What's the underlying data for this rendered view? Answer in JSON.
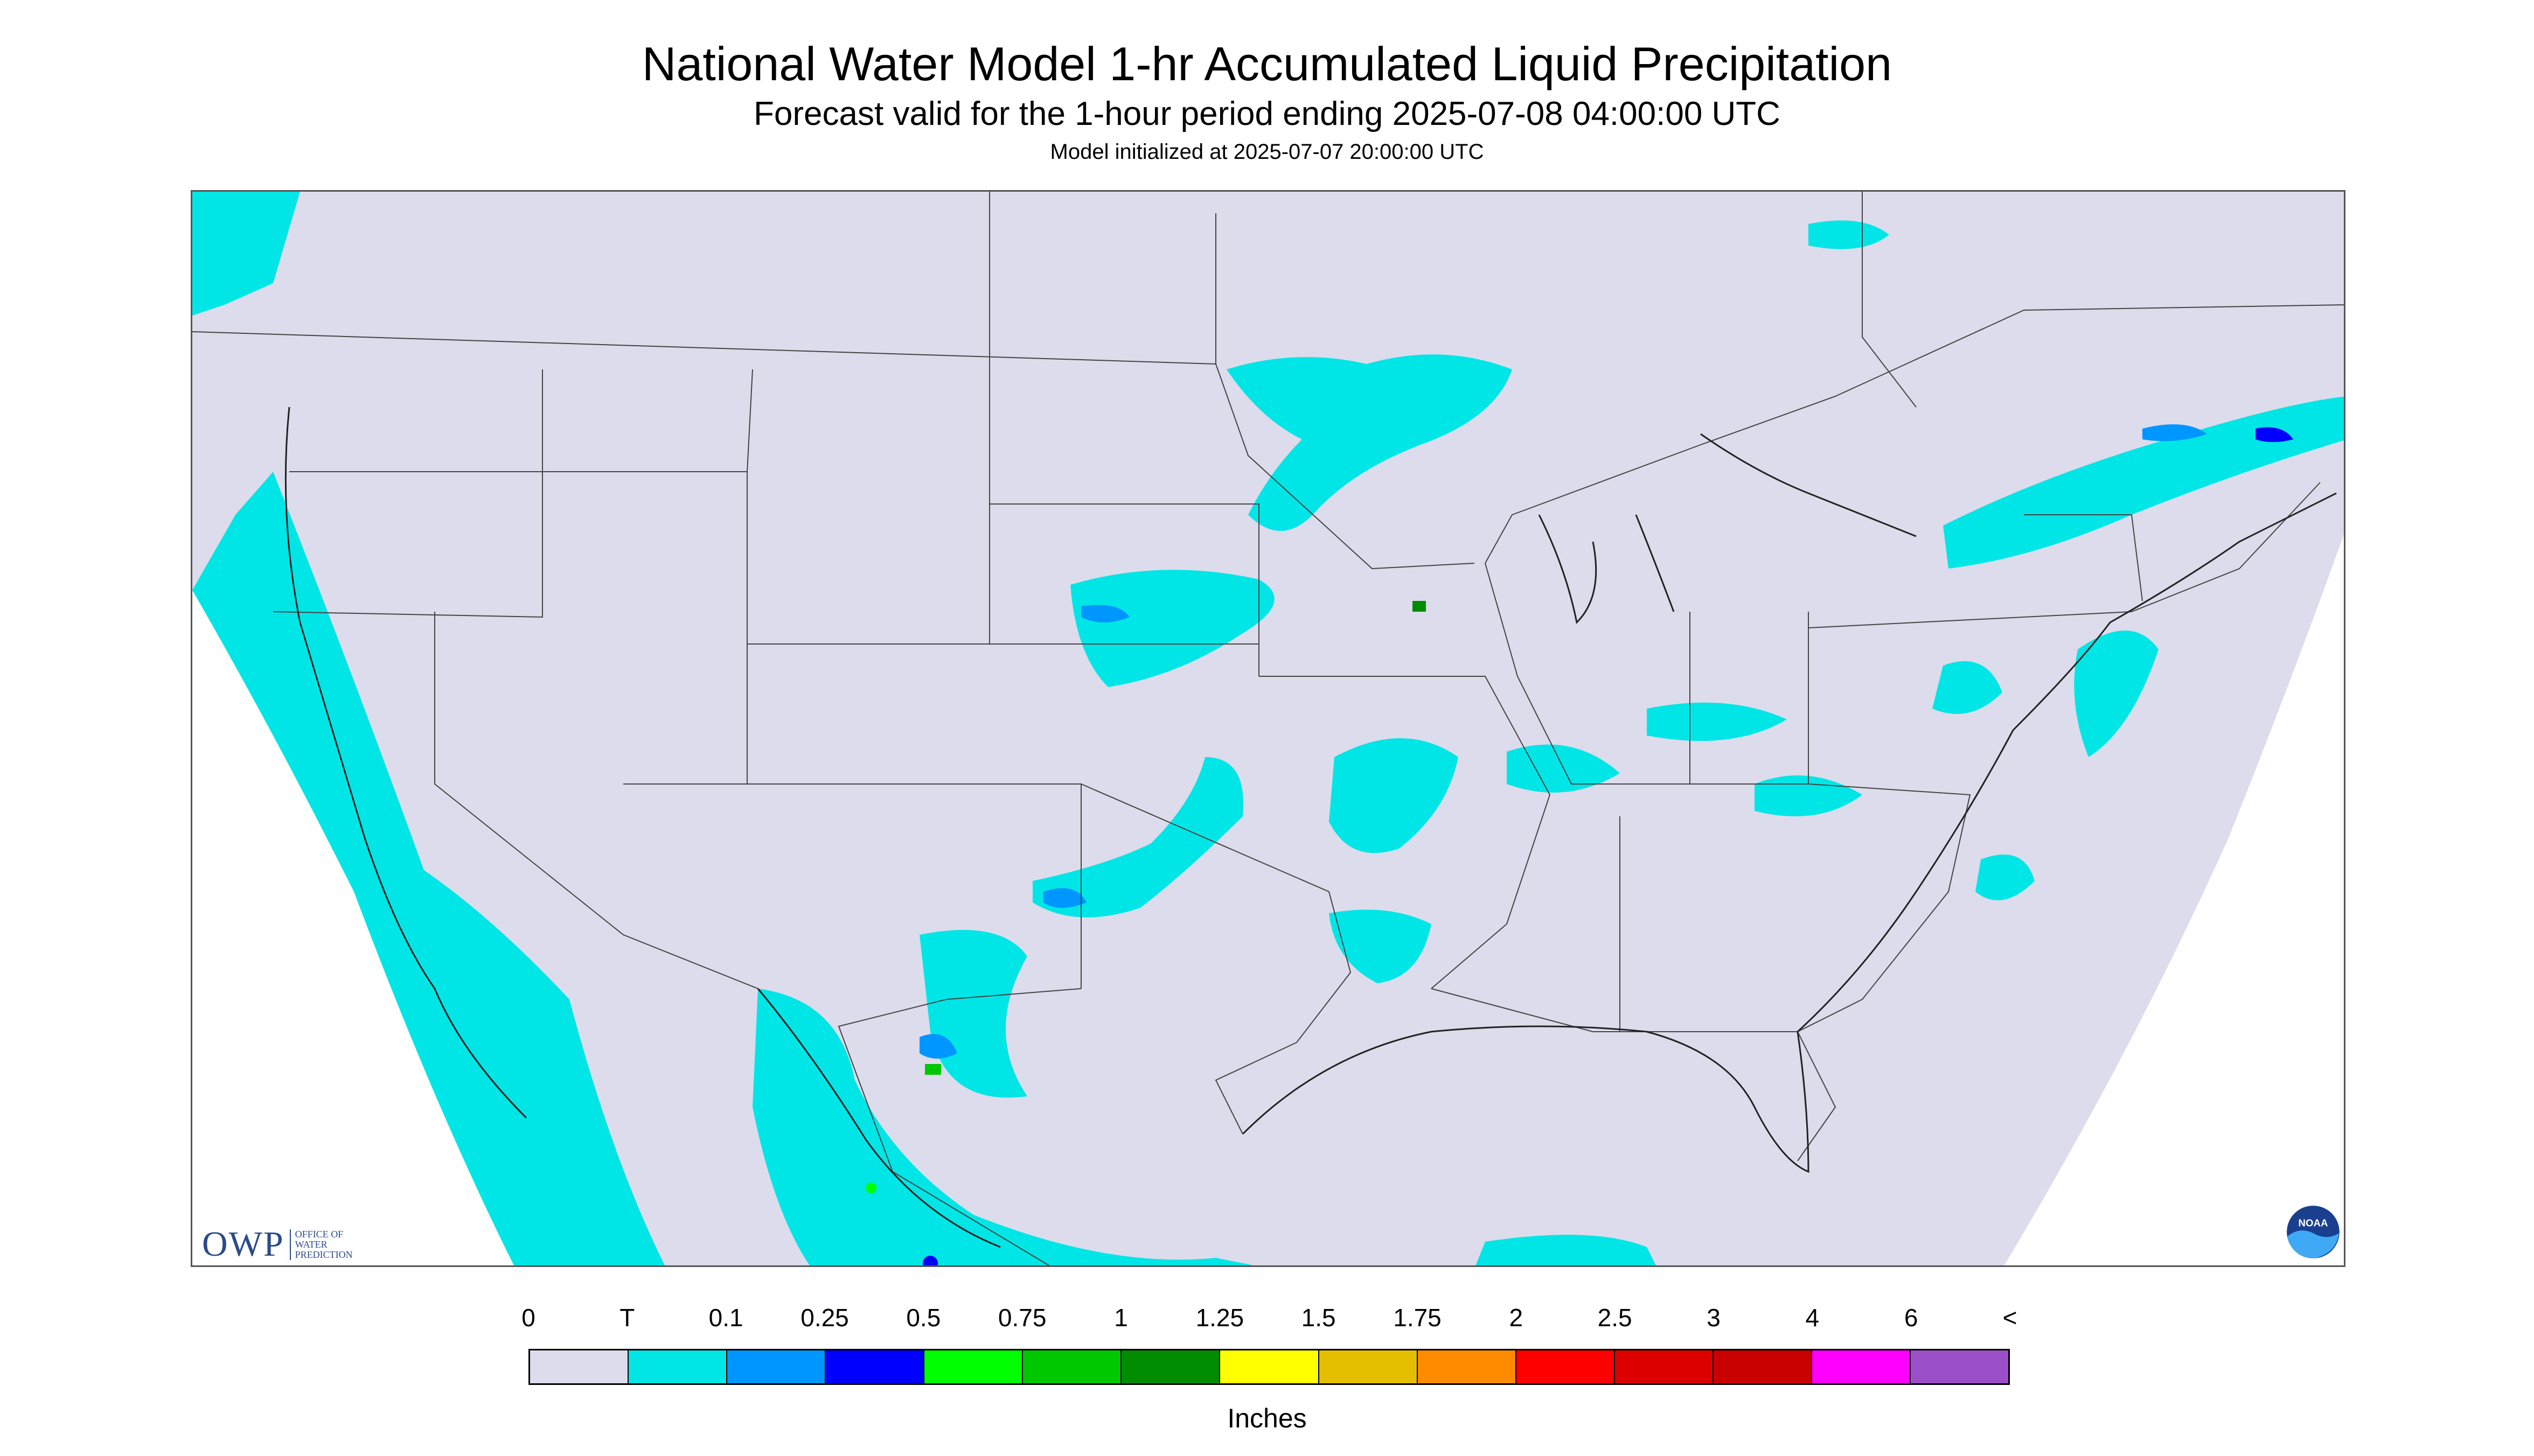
{
  "header": {
    "title": "National Water Model 1-hr Accumulated Liquid Precipitation",
    "subtitle": "Forecast valid for the 1-hour period ending 2025-07-08 04:00:00 UTC",
    "init_line": "Model initialized at 2025-07-07 20:00:00 UTC"
  },
  "map": {
    "background_color": "#dcdcec",
    "precip_light_color": "#00e6e6",
    "precip_medium_color": "#0096ff",
    "precip_heavy_color": "#0000ff",
    "border_color": "#444444"
  },
  "logos": {
    "owp": {
      "text": "OWP",
      "subtext": "OFFICE OF WATER PREDICTION"
    },
    "noaa": {
      "text": "NOAA"
    }
  },
  "legend": {
    "units": "Inches",
    "labels": [
      "0",
      "T",
      "0.1",
      "0.25",
      "0.5",
      "0.75",
      "1",
      "1.25",
      "1.5",
      "1.75",
      "2",
      "2.5",
      "3",
      "4",
      "6",
      "<"
    ],
    "colors": [
      "#dcdcec",
      "#00e6e6",
      "#0096ff",
      "#0000ff",
      "#00ff00",
      "#00c800",
      "#008c00",
      "#ffff00",
      "#e6be00",
      "#ff8c00",
      "#ff0000",
      "#dc0000",
      "#c80000",
      "#ff00ff",
      "#9a4fc8"
    ]
  }
}
